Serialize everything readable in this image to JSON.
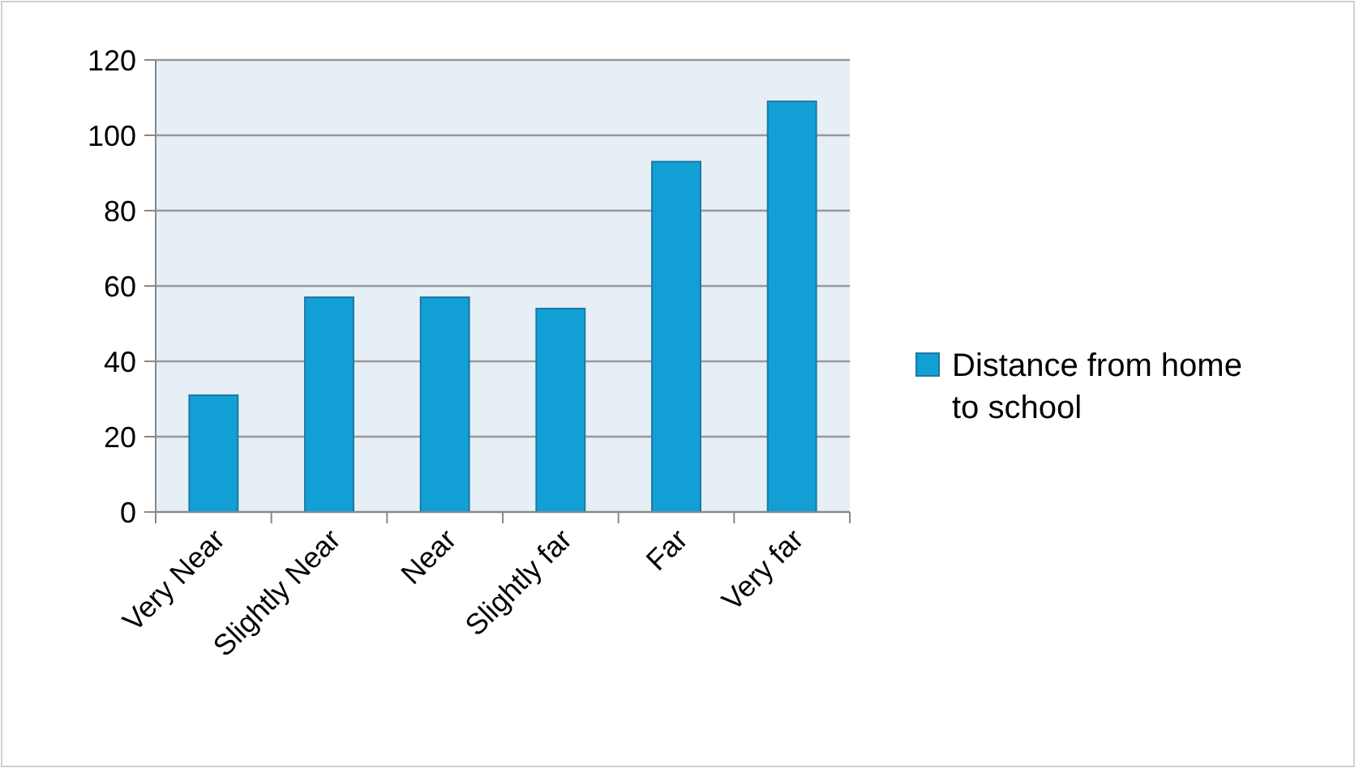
{
  "chart_data": {
    "type": "bar",
    "categories": [
      "Very Near",
      "Slightly Near",
      "Near",
      "Slightly far",
      "Far",
      "Very far"
    ],
    "series": [
      {
        "name": "Distance from home to school",
        "color": "#119fd6",
        "values": [
          31,
          57,
          57,
          54,
          93,
          109
        ]
      }
    ],
    "ylim": [
      0,
      120
    ],
    "yticks": [
      0,
      20,
      40,
      60,
      80,
      100,
      120
    ],
    "grid": "y",
    "legend": "right"
  }
}
